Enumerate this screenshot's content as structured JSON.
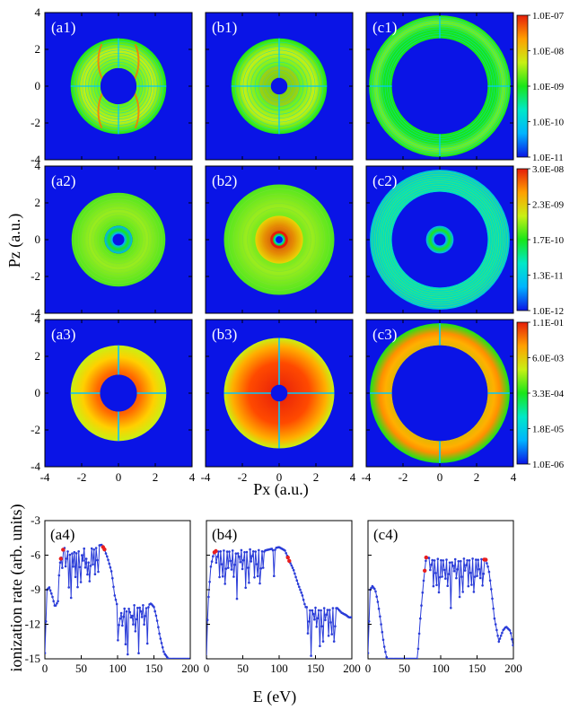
{
  "figure": {
    "y_axis_label": "Pz (a.u.)",
    "x_axis_label": "Px (a.u.)"
  },
  "colors": {
    "background": "#0a14e6",
    "ramp": [
      "#0a14e6",
      "#00b4ff",
      "#00e8c8",
      "#19e619",
      "#c8f014",
      "#ffa000",
      "#e61e0a"
    ],
    "curve": "#2a3cd8",
    "marker": "#e81e1e"
  },
  "chart_data": [
    {
      "type": "heatmap",
      "grid": "3x3 momentum distributions",
      "xlim": [
        -4,
        4
      ],
      "ylim": [
        -4,
        4
      ],
      "xticks": [
        "-4",
        "-2",
        "0",
        "2",
        "4"
      ],
      "yticks": [
        "-4",
        "-2",
        "0",
        "2",
        "4"
      ],
      "panels": [
        {
          "label": "(a1)",
          "inner_radius": 0.98,
          "outer_radius": 2.6
        },
        {
          "label": "(b1)",
          "inner_radius": 0.45,
          "outer_radius": 2.6
        },
        {
          "label": "(c1)",
          "inner_radius": 2.6,
          "outer_radius": 3.85
        },
        {
          "label": "(a2)",
          "inner_radius": 0.75,
          "outer_radius": 2.55
        },
        {
          "label": "(b2)",
          "inner_radius": 0.45,
          "outer_radius": 3.0
        },
        {
          "label": "(c2)",
          "inner_radius": 2.6,
          "outer_radius": 3.8
        },
        {
          "label": "(a3)",
          "inner_radius": 1.0,
          "outer_radius": 2.6
        },
        {
          "label": "(b3)",
          "inner_radius": 0.45,
          "outer_radius": 3.0
        },
        {
          "label": "(c3)",
          "inner_radius": 2.6,
          "outer_radius": 3.8
        }
      ],
      "colorbars": [
        {
          "row": 1,
          "ticks": [
            "1.0E-07",
            "1.0E-08",
            "1.0E-09",
            "1.0E-10",
            "1.0E-11"
          ]
        },
        {
          "row": 2,
          "ticks": [
            "3.0E-08",
            "2.3E-09",
            "1.7E-10",
            "1.3E-11",
            "1.0E-12"
          ]
        },
        {
          "row": 3,
          "ticks": [
            "1.1E-01",
            "6.0E-03",
            "3.3E-04",
            "1.8E-05",
            "1.0E-06"
          ]
        }
      ]
    },
    {
      "type": "line",
      "ylabel": "ionization rate (arb. units)",
      "xlabel": "E (eV)",
      "xlim": [
        0,
        200
      ],
      "ylim": [
        -15,
        -3
      ],
      "xticks": [
        "0",
        "50",
        "100",
        "150",
        "200"
      ],
      "yticks": [
        "-3",
        "-6",
        "-9",
        "-12",
        "-15"
      ],
      "panels": [
        {
          "label": "(a4)",
          "x": [
            0,
            3,
            6,
            10,
            14,
            18,
            20,
            24,
            28,
            32,
            40,
            60,
            78,
            82,
            86,
            92,
            96,
            100,
            130,
            140,
            146,
            150,
            154,
            158,
            164,
            170,
            200
          ],
          "y": [
            -14.5,
            -9.0,
            -8.8,
            -9.5,
            -10.5,
            -10.0,
            -7.0,
            -5.6,
            -5.3,
            -5.5,
            -5.5,
            -5.4,
            -5.1,
            -5.5,
            -6.2,
            -7.5,
            -9.5,
            -10.5,
            -10.3,
            -10.4,
            -10.2,
            -10.5,
            -11.5,
            -13.0,
            -14.5,
            -15.0,
            -15.0
          ],
          "dips": [
            24,
            29,
            33,
            36,
            39,
            42,
            45,
            49,
            52,
            56,
            59,
            62,
            66,
            69,
            73,
            101,
            104,
            107,
            111,
            114,
            118,
            121,
            125,
            129,
            133,
            137,
            141
          ],
          "markers": [
            22,
            25,
            80,
            82
          ]
        },
        {
          "label": "(b4)",
          "x": [
            0,
            2,
            6,
            10,
            14,
            18,
            24,
            40,
            60,
            80,
            100,
            108,
            114,
            120,
            126,
            132,
            136,
            160,
            180,
            186,
            192,
            196,
            200
          ],
          "y": [
            -15.0,
            -10.5,
            -7.0,
            -5.8,
            -5.6,
            -5.5,
            -5.6,
            -5.6,
            -5.5,
            -5.6,
            -5.3,
            -5.6,
            -6.5,
            -7.3,
            -8.5,
            -9.5,
            -10.5,
            -10.6,
            -10.6,
            -11.0,
            -11.2,
            -11.4,
            -11.4
          ],
          "dips": [
            14,
            18,
            22,
            26,
            30,
            34,
            38,
            42,
            46,
            50,
            54,
            58,
            62,
            66,
            70,
            74,
            78,
            93,
            140,
            144,
            148,
            152,
            156,
            160,
            164,
            168,
            172,
            176
          ],
          "markers": [
            11,
            13,
            112,
            114
          ]
        },
        {
          "label": "(c4)",
          "x": [
            0,
            3,
            6,
            10,
            14,
            18,
            22,
            26,
            30,
            68,
            72,
            76,
            80,
            90,
            110,
            130,
            150,
            162,
            166,
            170,
            174,
            180,
            186,
            190,
            196,
            200
          ],
          "y": [
            -14.5,
            -9.0,
            -8.7,
            -9.0,
            -10.2,
            -12.0,
            -13.8,
            -15.0,
            -15.0,
            -15.0,
            -11.5,
            -8.5,
            -6.2,
            -6.3,
            -6.4,
            -6.3,
            -6.3,
            -6.4,
            -7.2,
            -9.2,
            -11.5,
            -13.5,
            -12.5,
            -12.2,
            -12.6,
            -14.0
          ],
          "dips": [
            86,
            90,
            94,
            98,
            102,
            106,
            110,
            114,
            118,
            122,
            126,
            130,
            134,
            138,
            142,
            146,
            150,
            154,
            158
          ],
          "markers": [
            78,
            80,
            160,
            162
          ]
        }
      ]
    }
  ]
}
